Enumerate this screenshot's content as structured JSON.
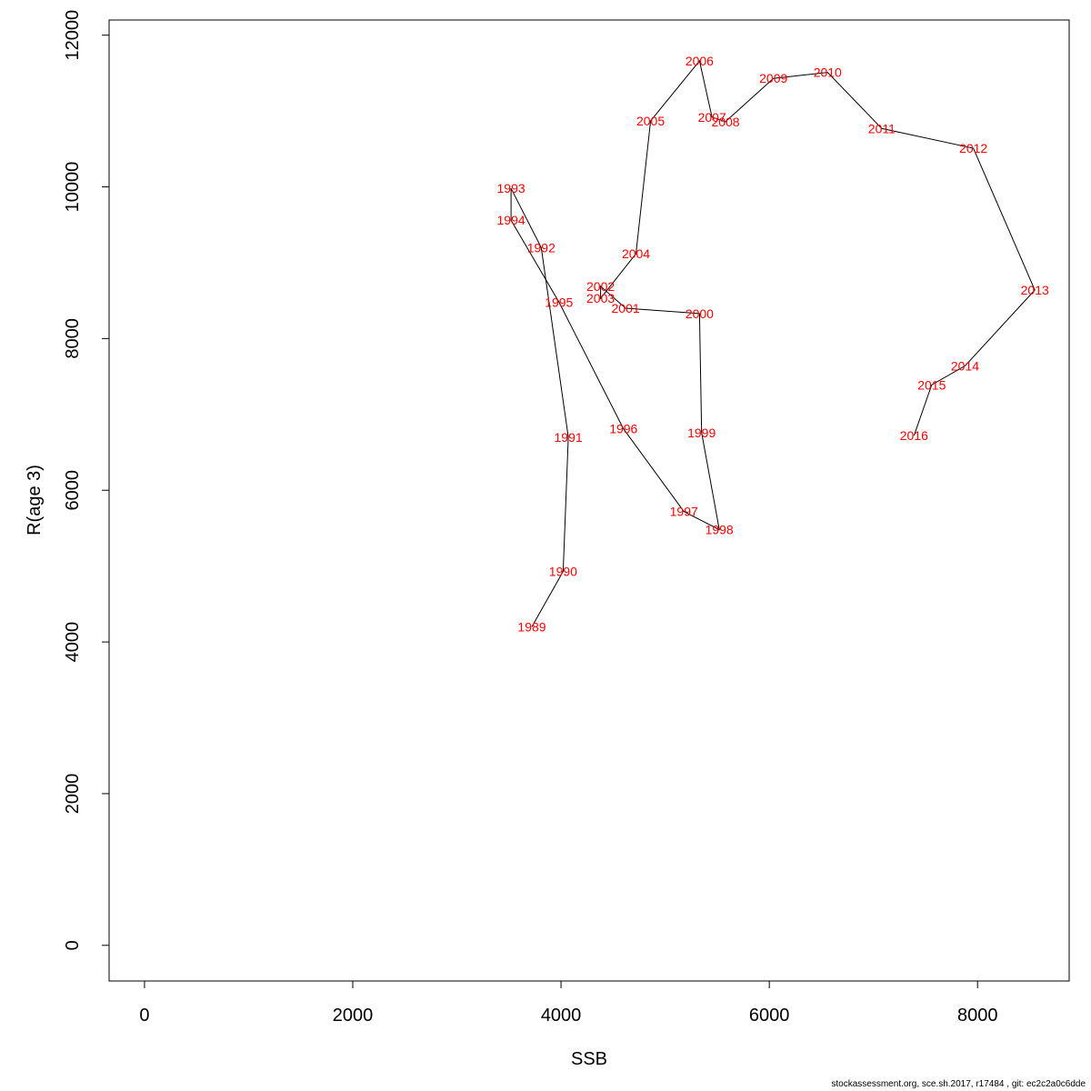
{
  "chart_data": {
    "type": "line",
    "title": "",
    "xlabel": "SSB",
    "ylabel": "R(age 3)",
    "xlim": [
      -340,
      8880
    ],
    "ylim": [
      -470,
      12200
    ],
    "x_ticks": [
      0,
      2000,
      4000,
      6000,
      8000
    ],
    "y_ticks": [
      0,
      2000,
      4000,
      6000,
      8000,
      10000,
      12000
    ],
    "grid": false,
    "line_color": "#000000",
    "label_color": "#ff0000",
    "points": [
      {
        "label": "1989",
        "x": 3720,
        "y": 4200
      },
      {
        "label": "1990",
        "x": 4020,
        "y": 4930
      },
      {
        "label": "1991",
        "x": 4070,
        "y": 6700
      },
      {
        "label": "1992",
        "x": 3810,
        "y": 9200
      },
      {
        "label": "1993",
        "x": 3520,
        "y": 9980
      },
      {
        "label": "1994",
        "x": 3520,
        "y": 9560
      },
      {
        "label": "1995",
        "x": 3980,
        "y": 8480
      },
      {
        "label": "1996",
        "x": 4600,
        "y": 6810
      },
      {
        "label": "1997",
        "x": 5180,
        "y": 5720
      },
      {
        "label": "1998",
        "x": 5520,
        "y": 5480
      },
      {
        "label": "1999",
        "x": 5350,
        "y": 6760
      },
      {
        "label": "2000",
        "x": 5330,
        "y": 8330
      },
      {
        "label": "2001",
        "x": 4620,
        "y": 8400
      },
      {
        "label": "2002",
        "x": 4380,
        "y": 8690
      },
      {
        "label": "2003",
        "x": 4380,
        "y": 8530
      },
      {
        "label": "2004",
        "x": 4720,
        "y": 9120
      },
      {
        "label": "2005",
        "x": 4860,
        "y": 10870
      },
      {
        "label": "2006",
        "x": 5330,
        "y": 11660
      },
      {
        "label": "2007",
        "x": 5450,
        "y": 10920
      },
      {
        "label": "2008",
        "x": 5580,
        "y": 10860
      },
      {
        "label": "2009",
        "x": 6040,
        "y": 11430
      },
      {
        "label": "2010",
        "x": 6560,
        "y": 11510
      },
      {
        "label": "2011",
        "x": 7080,
        "y": 10770
      },
      {
        "label": "2012",
        "x": 7960,
        "y": 10510
      },
      {
        "label": "2013",
        "x": 8550,
        "y": 8640
      },
      {
        "label": "2014",
        "x": 7880,
        "y": 7640
      },
      {
        "label": "2015",
        "x": 7560,
        "y": 7390
      },
      {
        "label": "2016",
        "x": 7390,
        "y": 6720
      }
    ]
  },
  "footer": "stockassessment.org, sce.sh.2017, r17484 , git: ec2c2a0c6dde"
}
